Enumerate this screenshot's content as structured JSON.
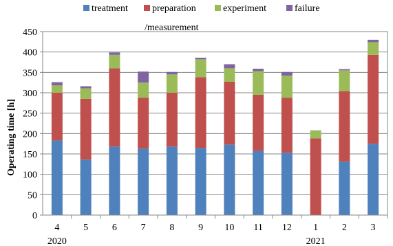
{
  "chart_data": {
    "type": "bar",
    "stacked": true,
    "categories": [
      "4",
      "5",
      "6",
      "7",
      "8",
      "9",
      "10",
      "11",
      "12",
      "1",
      "2",
      "3"
    ],
    "year_labels": [
      {
        "category": "4",
        "text": "2020"
      },
      {
        "category": "1",
        "text": "2021"
      }
    ],
    "series": [
      {
        "name": "treatment",
        "color": "#4F81BD",
        "values": [
          183,
          136,
          168,
          163,
          168,
          165,
          173,
          157,
          153,
          0,
          131,
          175
        ]
      },
      {
        "name": "preparation",
        "color": "#C0504D",
        "values": [
          117,
          149,
          192,
          125,
          132,
          173,
          154,
          138,
          135,
          188,
          173,
          218
        ]
      },
      {
        "name": "experiment",
        "color": "#9BBB59",
        "values": [
          18,
          26,
          33,
          37,
          45,
          44,
          33,
          58,
          54,
          20,
          51,
          31
        ]
      },
      {
        "name": "failure",
        "color": "#8064A2",
        "values": [
          8,
          5,
          6,
          27,
          6,
          4,
          10,
          6,
          9,
          0,
          3,
          6
        ]
      }
    ],
    "legend_overflow_text": "/measurement",
    "ylabel": "Operating time [h]",
    "xlabel": "",
    "ylim": [
      0,
      450
    ],
    "yticks": [
      0,
      50,
      100,
      150,
      200,
      250,
      300,
      350,
      400,
      450
    ],
    "grid": true,
    "legend_position": "top"
  }
}
